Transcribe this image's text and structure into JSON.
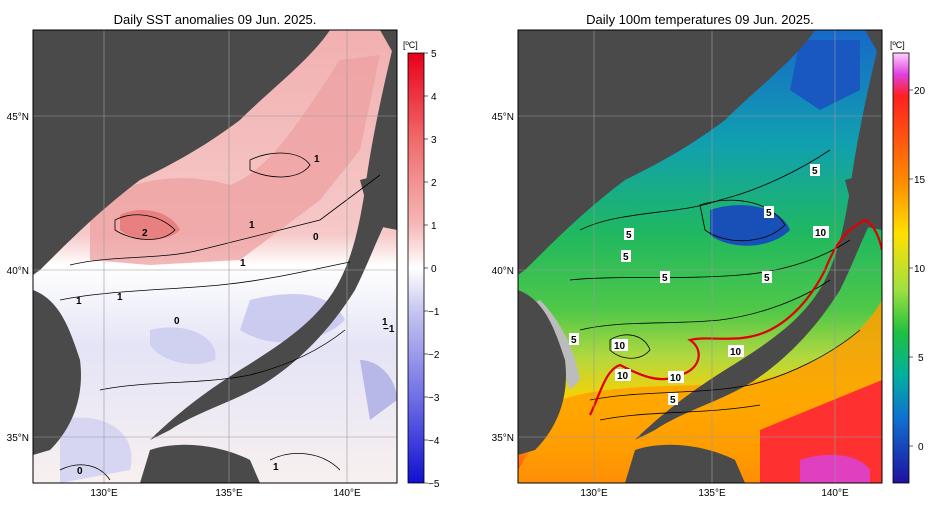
{
  "panels": [
    {
      "id": "sst",
      "title": "Daily SST anomalies 09 Jun. 2025.",
      "unit": "[ºC]",
      "colorbar_ticks": [
        "5",
        "4",
        "3",
        "2",
        "1",
        "0",
        "−1",
        "−2",
        "−3",
        "−4",
        "−5"
      ],
      "contour_labels": [
        "1",
        "2",
        "1",
        "0",
        "1",
        "1",
        "1",
        "0",
        "1",
        "−1",
        "0",
        "1"
      ]
    },
    {
      "id": "t100",
      "title": "Daily 100m temperatures 09 Jun. 2025.",
      "unit": "[ºC]",
      "colorbar_ticks": [
        "20",
        "15",
        "10",
        "5",
        "0"
      ],
      "contour_labels": [
        "5",
        "5",
        "5",
        "5",
        "5",
        "5",
        "10",
        "5",
        "10",
        "10",
        "10",
        "10",
        "5"
      ]
    }
  ],
  "axes": {
    "lat_ticks": [
      "45°N",
      "40°N",
      "35°N"
    ],
    "lon_ticks": [
      "130°E",
      "135°E",
      "140°E"
    ]
  },
  "colors": {
    "land": "#4a4a4a",
    "ocean_frame": "#000000",
    "front_line": "#e00000"
  }
}
